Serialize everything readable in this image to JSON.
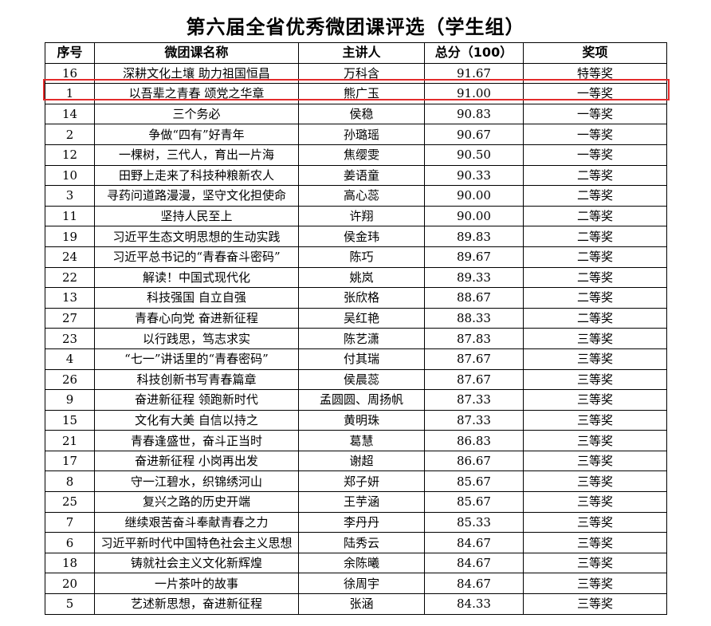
{
  "document": {
    "title": "第六届全省优秀微团课评选（学生组）",
    "columns": [
      "序号",
      "微团课名称",
      "主讲人",
      "总分（100）",
      "奖项"
    ],
    "highlight_color": "#e32b2b",
    "rows": [
      {
        "no": "16",
        "title": "深耕文化土壤 助力祖国恒昌",
        "speaker": "万科含",
        "score": "91.67",
        "award": "特等奖"
      },
      {
        "no": "1",
        "title": "以吾辈之青春 颂党之华章",
        "speaker": "熊广玉",
        "score": "91.00",
        "award": "一等奖",
        "highlighted": true
      },
      {
        "no": "14",
        "title": "三个务必",
        "speaker": "侯稳",
        "score": "90.83",
        "award": "一等奖"
      },
      {
        "no": "2",
        "title": "争做“四有”好青年",
        "speaker": "孙璐瑶",
        "score": "90.67",
        "award": "一等奖"
      },
      {
        "no": "12",
        "title": "一棵树，三代人，育出一片海",
        "speaker": "焦缨雯",
        "score": "90.50",
        "award": "一等奖"
      },
      {
        "no": "10",
        "title": "田野上走来了科技种粮新农人",
        "speaker": "姜语童",
        "score": "90.33",
        "award": "二等奖"
      },
      {
        "no": "3",
        "title": "寻药问道路漫漫，坚守文化担使命",
        "speaker": "高心蕊",
        "score": "90.00",
        "award": "二等奖"
      },
      {
        "no": "11",
        "title": "坚持人民至上",
        "speaker": "许翔",
        "score": "90.00",
        "award": "二等奖"
      },
      {
        "no": "19",
        "title": "习近平生态文明思想的生动实践",
        "speaker": "侯金玮",
        "score": "89.83",
        "award": "二等奖"
      },
      {
        "no": "24",
        "title": "习近平总书记的“青春奋斗密码”",
        "speaker": "陈巧",
        "score": "89.67",
        "award": "二等奖"
      },
      {
        "no": "22",
        "title": "解读！中国式现代化",
        "speaker": "姚岚",
        "score": "89.33",
        "award": "二等奖"
      },
      {
        "no": "13",
        "title": "科技强国 自立自强",
        "speaker": "张欣格",
        "score": "88.67",
        "award": "二等奖"
      },
      {
        "no": "27",
        "title": "青春心向党 奋进新征程",
        "speaker": "吴红艳",
        "score": "88.33",
        "award": "二等奖"
      },
      {
        "no": "23",
        "title": "以行践思，笃志求实",
        "speaker": "陈艺潇",
        "score": "87.83",
        "award": "三等奖"
      },
      {
        "no": "4",
        "title": "“七一”讲话里的“青春密码”",
        "speaker": "付其瑞",
        "score": "87.67",
        "award": "三等奖"
      },
      {
        "no": "26",
        "title": "科技创新书写青春篇章",
        "speaker": "侯晨蕊",
        "score": "87.67",
        "award": "三等奖"
      },
      {
        "no": "9",
        "title": "奋进新征程 领跑新时代",
        "speaker": "孟圆圆、周扬帆",
        "score": "87.33",
        "award": "三等奖"
      },
      {
        "no": "15",
        "title": "文化有大美 自信以持之",
        "speaker": "黄明珠",
        "score": "87.33",
        "award": "三等奖"
      },
      {
        "no": "21",
        "title": "青春逢盛世，奋斗正当时",
        "speaker": "葛慧",
        "score": "86.83",
        "award": "三等奖"
      },
      {
        "no": "17",
        "title": "奋进新征程 小岗再出发",
        "speaker": "谢超",
        "score": "86.67",
        "award": "三等奖"
      },
      {
        "no": "8",
        "title": "守一江碧水，织锦绣河山",
        "speaker": "郑子妍",
        "score": "85.67",
        "award": "三等奖"
      },
      {
        "no": "25",
        "title": "复兴之路的历史开端",
        "speaker": "王芋涵",
        "score": "85.67",
        "award": "三等奖"
      },
      {
        "no": "7",
        "title": "继续艰苦奋斗奉献青春之力",
        "speaker": "李丹丹",
        "score": "85.33",
        "award": "三等奖"
      },
      {
        "no": "6",
        "title": "习近平新时代中国特色社会主义思想",
        "speaker": "陆秀云",
        "score": "84.67",
        "award": "三等奖"
      },
      {
        "no": "18",
        "title": "铸就社会主义文化新辉煌",
        "speaker": "余陈曦",
        "score": "84.67",
        "award": "三等奖"
      },
      {
        "no": "20",
        "title": "一片茶叶的故事",
        "speaker": "徐周宇",
        "score": "84.67",
        "award": "三等奖"
      },
      {
        "no": "5",
        "title": "艺述新思想，奋进新征程",
        "speaker": "张涵",
        "score": "84.33",
        "award": "三等奖"
      }
    ]
  }
}
